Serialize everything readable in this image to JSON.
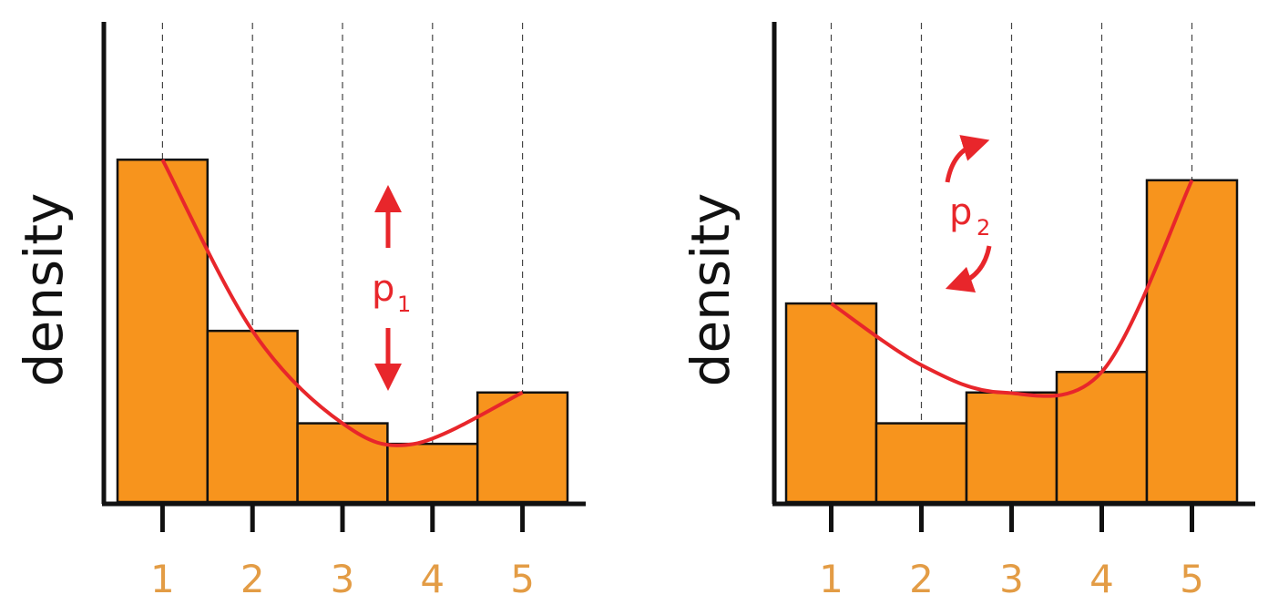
{
  "colors": {
    "bar_fill": "#f7941d",
    "bar_stroke": "#111111",
    "curve": "#e8262b",
    "tick_label": "#e39c45",
    "axis": "#111111",
    "grid": "#444444",
    "background": "#ffffff"
  },
  "chart_data": [
    {
      "type": "bar",
      "title": "",
      "xlabel": "",
      "ylabel": "density",
      "categories": [
        "1",
        "2",
        "3",
        "4",
        "5"
      ],
      "values": [
        1.0,
        0.5,
        0.23,
        0.17,
        0.32
      ],
      "ylim": [
        0,
        1.4
      ],
      "grid": "vertical dashed lines at each category",
      "curve": {
        "shape": "quadratic",
        "points": [
          [
            1,
            1.0
          ],
          [
            2,
            0.5
          ],
          [
            3,
            0.23
          ],
          [
            3.8,
            0.17
          ],
          [
            5,
            0.32
          ]
        ]
      },
      "annotation": {
        "text": "p",
        "subscript": "1",
        "icon": "up-down-arrows-icon"
      }
    },
    {
      "type": "bar",
      "title": "",
      "xlabel": "",
      "ylabel": "density",
      "categories": [
        "1",
        "2",
        "3",
        "4",
        "5"
      ],
      "values": [
        0.58,
        0.23,
        0.32,
        0.38,
        0.94
      ],
      "ylim": [
        0,
        1.4
      ],
      "grid": "vertical dashed lines at each category",
      "curve": {
        "shape": "quadratic",
        "points": [
          [
            1,
            0.58
          ],
          [
            2,
            0.4
          ],
          [
            2.9,
            0.32
          ],
          [
            4,
            0.38
          ],
          [
            5,
            0.94
          ]
        ]
      },
      "annotation": {
        "text": "p",
        "subscript": "2",
        "icon": "rotate-arrows-icon"
      }
    }
  ]
}
